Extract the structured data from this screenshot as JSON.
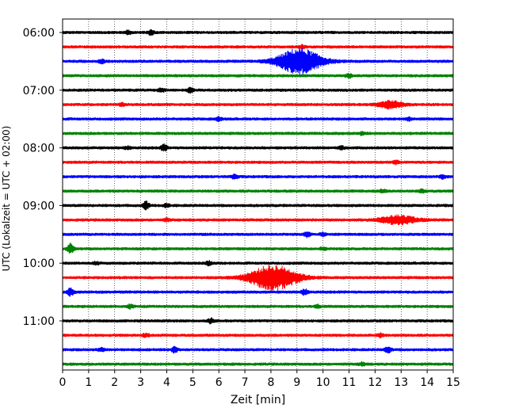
{
  "chart_data": {
    "type": "line",
    "title": "",
    "xlabel": "Zeit  [min]",
    "ylabel": "UTC (Lokalzeit = UTC + 02:00)",
    "xlim": [
      0,
      15
    ],
    "x_ticks": [
      "0",
      "1",
      "2",
      "3",
      "4",
      "5",
      "6",
      "7",
      "8",
      "9",
      "10",
      "11",
      "12",
      "13",
      "14",
      "15"
    ],
    "y_ticks": [
      "06:00",
      "07:00",
      "08:00",
      "09:00",
      "10:00",
      "11:00"
    ],
    "grid": "vertical dotted",
    "trace_interval_minutes": 15,
    "color_cycle": [
      "#000000",
      "#ff0000",
      "#0000ff",
      "#008000"
    ],
    "rows": [
      {
        "time": "06:00",
        "color": "#000000",
        "events": [
          {
            "t": 2.5,
            "amp": 0.35
          },
          {
            "t": 3.4,
            "amp": 0.4
          }
        ]
      },
      {
        "time": "06:15",
        "color": "#ff0000",
        "events": [
          {
            "t": 9.2,
            "amp": 0.3
          }
        ]
      },
      {
        "time": "06:30",
        "color": "#0000ff",
        "events": [
          {
            "t": 9.1,
            "amp": 2.6,
            "width": 1.8
          },
          {
            "t": 1.5,
            "amp": 0.35
          }
        ]
      },
      {
        "time": "06:45",
        "color": "#008000",
        "events": [
          {
            "t": 11.0,
            "amp": 0.35
          }
        ]
      },
      {
        "time": "07:00",
        "color": "#000000",
        "events": [
          {
            "t": 4.9,
            "amp": 0.5
          },
          {
            "t": 3.8,
            "amp": 0.35
          }
        ]
      },
      {
        "time": "07:15",
        "color": "#ff0000",
        "events": [
          {
            "t": 12.6,
            "amp": 0.7,
            "width": 1.0
          },
          {
            "t": 2.3,
            "amp": 0.25
          }
        ]
      },
      {
        "time": "07:30",
        "color": "#0000ff",
        "events": [
          {
            "t": 6.0,
            "amp": 0.35
          },
          {
            "t": 13.3,
            "amp": 0.3
          }
        ]
      },
      {
        "time": "07:45",
        "color": "#008000",
        "events": [
          {
            "t": 11.5,
            "amp": 0.25
          }
        ]
      },
      {
        "time": "08:00",
        "color": "#000000",
        "events": [
          {
            "t": 3.9,
            "amp": 0.65
          },
          {
            "t": 2.5,
            "amp": 0.25
          },
          {
            "t": 10.7,
            "amp": 0.3
          }
        ]
      },
      {
        "time": "08:15",
        "color": "#ff0000",
        "events": [
          {
            "t": 12.8,
            "amp": 0.3
          }
        ]
      },
      {
        "time": "08:30",
        "color": "#0000ff",
        "events": [
          {
            "t": 6.6,
            "amp": 0.45
          },
          {
            "t": 14.6,
            "amp": 0.35
          }
        ]
      },
      {
        "time": "08:45",
        "color": "#008000",
        "events": [
          {
            "t": 12.3,
            "amp": 0.3
          },
          {
            "t": 13.8,
            "amp": 0.3
          }
        ]
      },
      {
        "time": "09:00",
        "color": "#000000",
        "events": [
          {
            "t": 3.2,
            "amp": 0.75
          },
          {
            "t": 4.0,
            "amp": 0.3
          }
        ]
      },
      {
        "time": "09:15",
        "color": "#ff0000",
        "events": [
          {
            "t": 12.9,
            "amp": 0.85,
            "width": 1.5
          },
          {
            "t": 4.0,
            "amp": 0.25
          }
        ]
      },
      {
        "time": "09:30",
        "color": "#0000ff",
        "events": [
          {
            "t": 9.4,
            "amp": 0.5
          },
          {
            "t": 10.0,
            "amp": 0.3
          }
        ]
      },
      {
        "time": "09:45",
        "color": "#008000",
        "events": [
          {
            "t": 0.3,
            "amp": 1.0
          },
          {
            "t": 10.0,
            "amp": 0.25
          }
        ]
      },
      {
        "time": "10:00",
        "color": "#000000",
        "events": [
          {
            "t": 5.6,
            "amp": 0.4
          },
          {
            "t": 1.3,
            "amp": 0.25
          }
        ]
      },
      {
        "time": "10:15",
        "color": "#ff0000",
        "events": [
          {
            "t": 8.1,
            "amp": 2.5,
            "width": 2.0
          }
        ]
      },
      {
        "time": "10:30",
        "color": "#0000ff",
        "events": [
          {
            "t": 0.3,
            "amp": 0.8
          },
          {
            "t": 9.3,
            "amp": 0.55
          }
        ]
      },
      {
        "time": "10:45",
        "color": "#008000",
        "events": [
          {
            "t": 2.6,
            "amp": 0.35
          },
          {
            "t": 9.8,
            "amp": 0.3
          }
        ]
      },
      {
        "time": "11:00",
        "color": "#000000",
        "events": [
          {
            "t": 5.7,
            "amp": 0.45
          }
        ]
      },
      {
        "time": "11:15",
        "color": "#ff0000",
        "events": [
          {
            "t": 3.2,
            "amp": 0.3
          },
          {
            "t": 12.2,
            "amp": 0.35
          }
        ]
      },
      {
        "time": "11:30",
        "color": "#0000ff",
        "events": [
          {
            "t": 4.3,
            "amp": 0.55
          },
          {
            "t": 12.5,
            "amp": 0.65
          },
          {
            "t": 1.5,
            "amp": 0.35
          }
        ]
      },
      {
        "time": "11:45",
        "color": "#008000",
        "events": [
          {
            "t": 11.5,
            "amp": 0.3
          }
        ]
      }
    ]
  }
}
